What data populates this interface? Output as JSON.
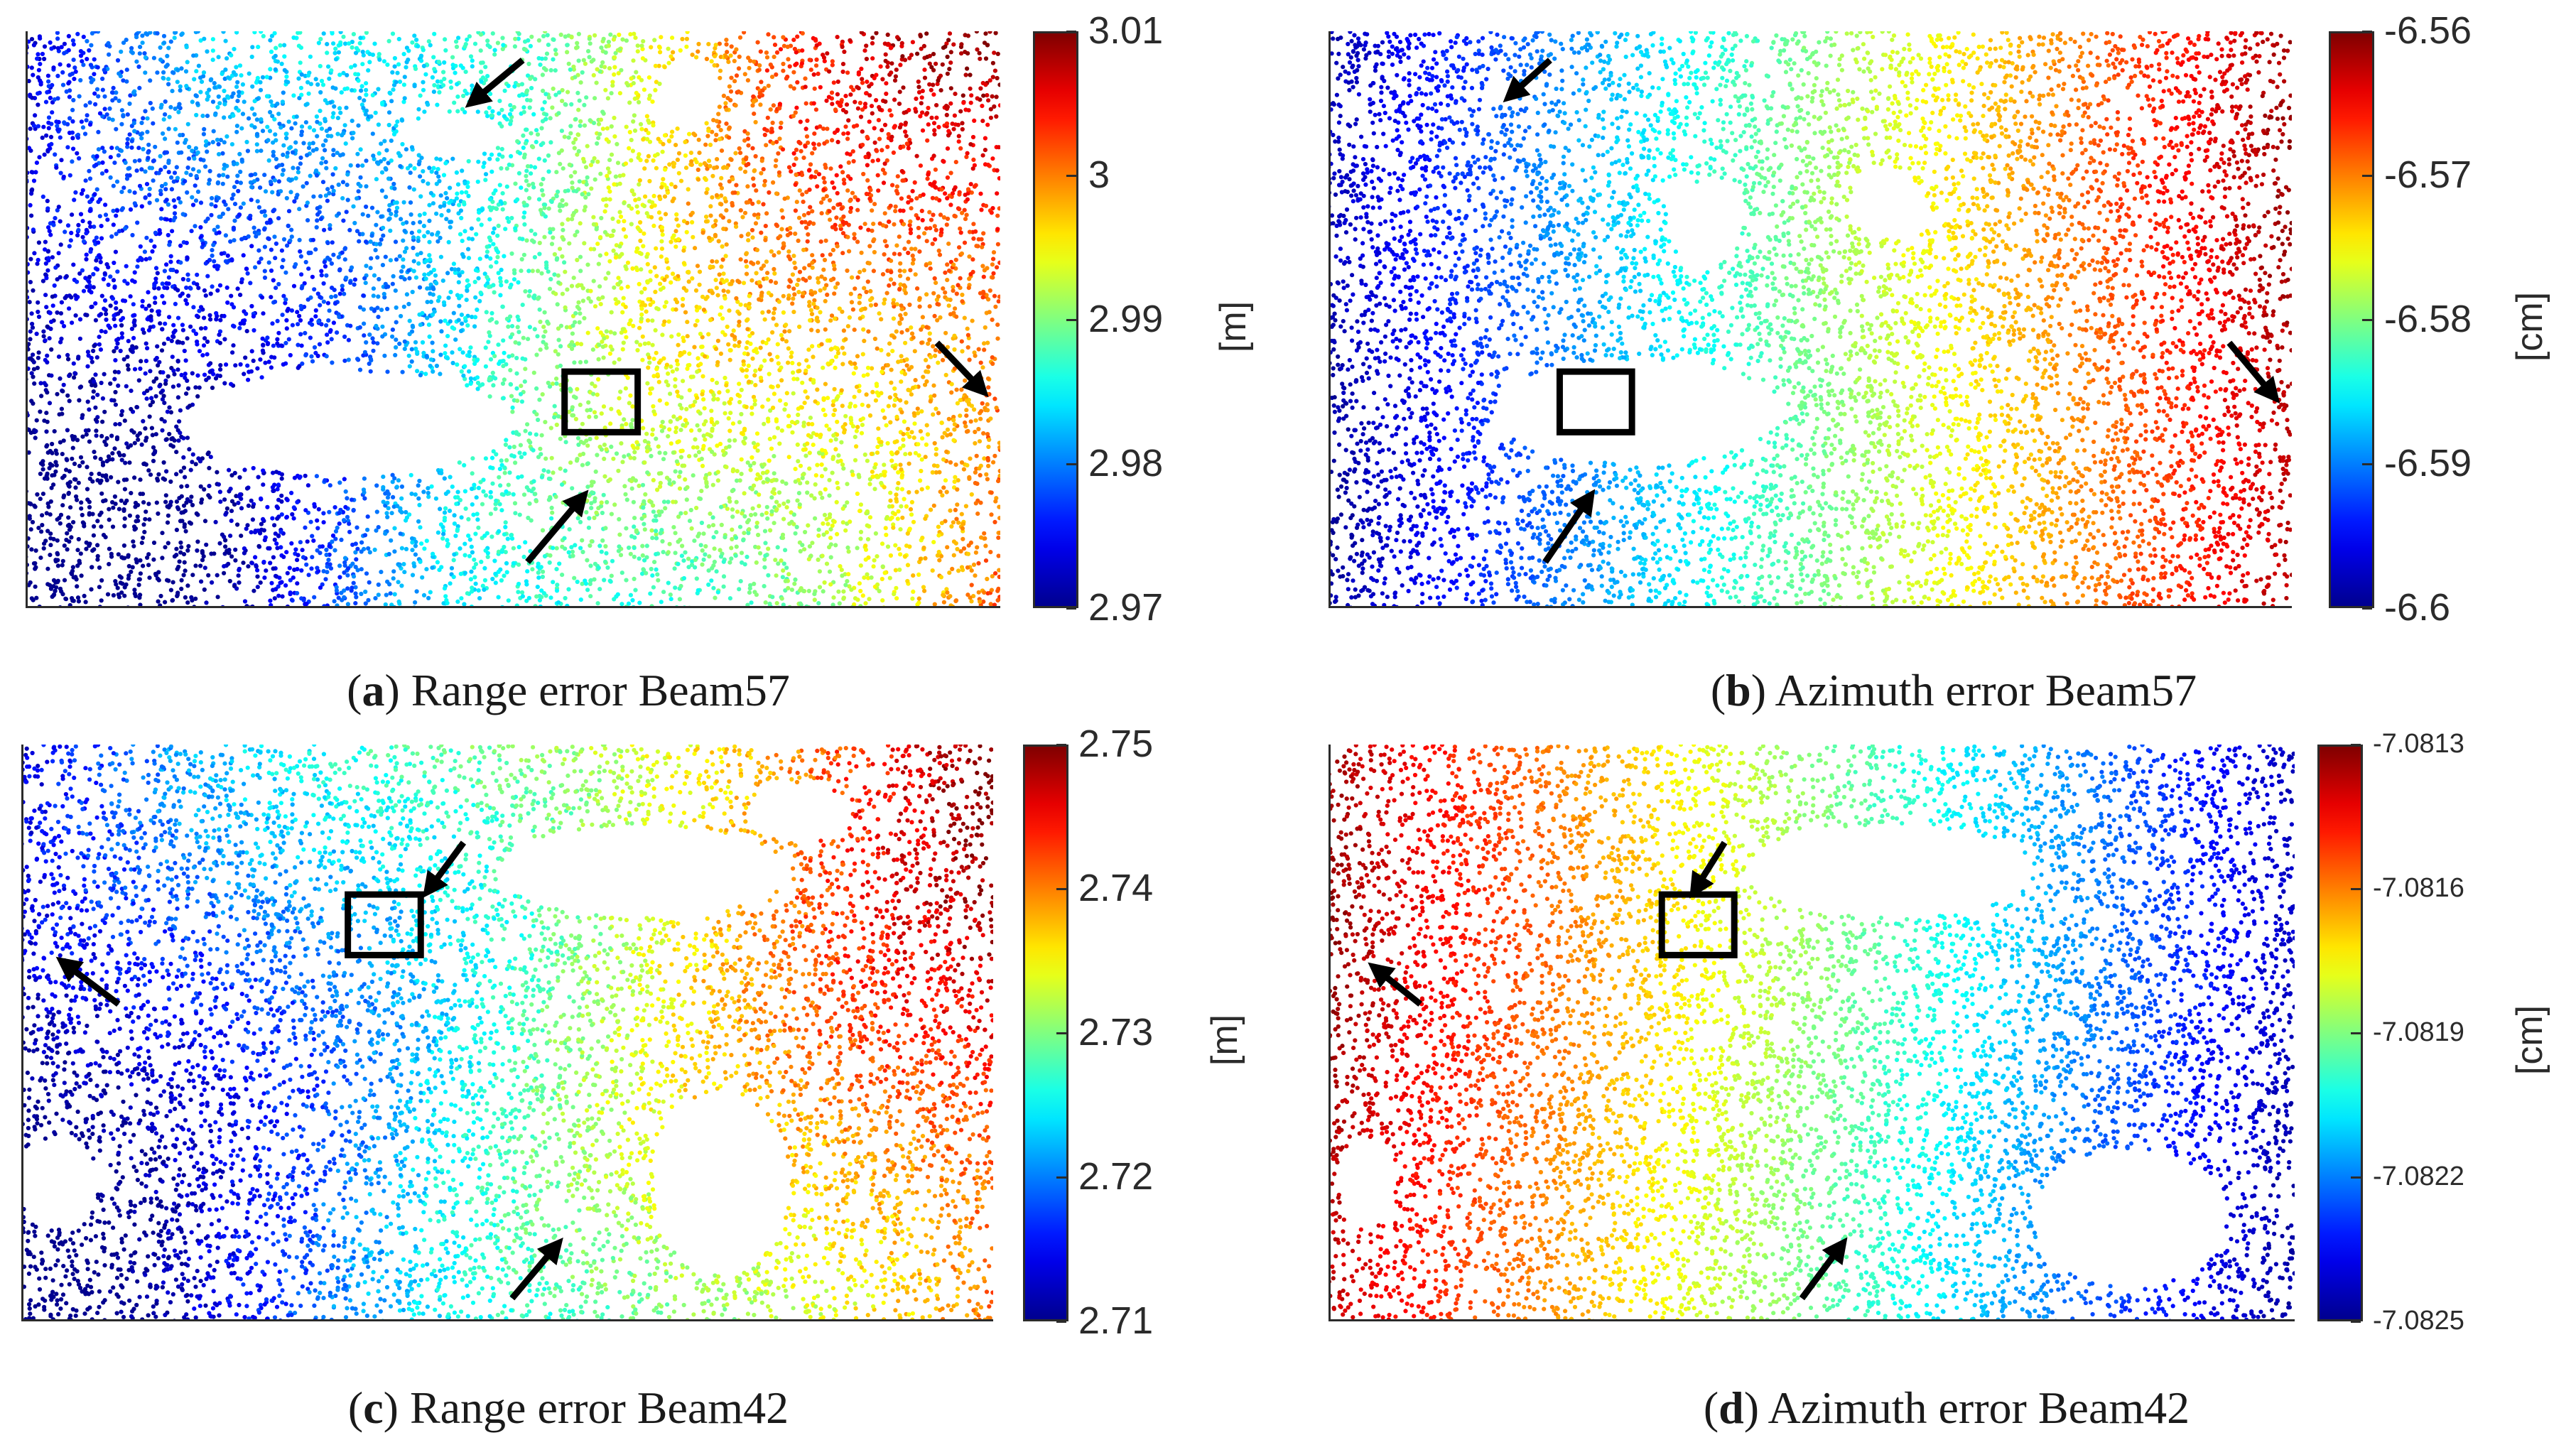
{
  "chart_data": [
    {
      "type": "heatmap",
      "panel_letter": "a",
      "caption_text": "Range error Beam57",
      "unit_label": "[m]",
      "colorbar": {
        "min": 2.97,
        "max": 3.01,
        "ticks": [
          "3.01",
          "3",
          "2.99",
          "2.98",
          "2.97"
        ]
      },
      "trend": "increases from the blue left side to the red right side",
      "annotations": [
        "arrow-top",
        "arrow-right",
        "arrow-bottom",
        "box-center"
      ]
    },
    {
      "type": "heatmap",
      "panel_letter": "b",
      "caption_text": "Azimuth error Beam57",
      "unit_label": "[cm]",
      "colorbar": {
        "min": -6.6,
        "max": -6.56,
        "ticks": [
          "-6.56",
          "-6.57",
          "-6.58",
          "-6.59",
          "-6.6"
        ]
      },
      "trend": "increases from the blue left side to the red right side",
      "annotations": [
        "arrow-top",
        "arrow-right",
        "arrow-bottom",
        "box-center"
      ]
    },
    {
      "type": "heatmap",
      "panel_letter": "c",
      "caption_text": "Range error Beam42",
      "unit_label": "[m]",
      "colorbar": {
        "min": 2.71,
        "max": 2.75,
        "ticks": [
          "2.75",
          "2.74",
          "2.73",
          "2.72",
          "2.71"
        ]
      },
      "trend": "increases from the blue left side to the red right side",
      "annotations": [
        "arrow-box",
        "arrow-left",
        "arrow-bottom",
        "box-upper-left"
      ]
    },
    {
      "type": "heatmap",
      "panel_letter": "d",
      "caption_text": "Azimuth error Beam42",
      "unit_label": "[cm]",
      "colorbar": {
        "min": -7.0825,
        "max": -7.0813,
        "ticks": [
          "-7.0813",
          "-7.0816",
          "-7.0819",
          "-7.0822",
          "-7.0825"
        ]
      },
      "trend": "decreases from the red left side to the blue right side",
      "annotations": [
        "arrow-box",
        "arrow-left",
        "arrow-bottom",
        "box-center"
      ]
    }
  ],
  "colors": {
    "jet": [
      "#00008f",
      "#0000ff",
      "#0080ff",
      "#00ffff",
      "#80ff80",
      "#ffff00",
      "#ff8000",
      "#ff0000",
      "#800000"
    ],
    "annotation": "#000000",
    "axis": "#2b2b2b"
  }
}
